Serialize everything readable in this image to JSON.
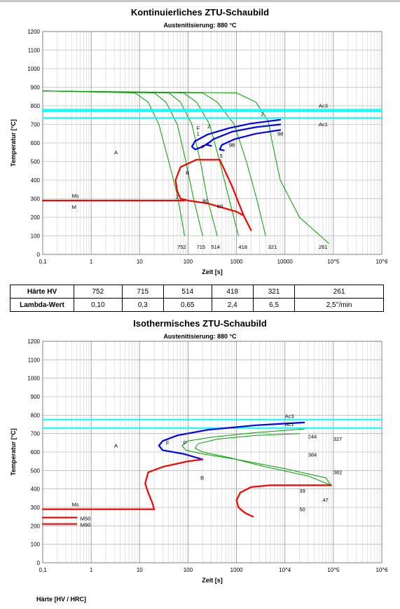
{
  "chart_data": [
    {
      "type": "line",
      "title": "Kontinuierliches ZTU-Schaubild",
      "subtitle": "Austenitisierung: 880 °C",
      "xlabel": "Zeit [s]",
      "ylabel": "Temperatur [°C]",
      "xscale": "log",
      "xlim": [
        0.1,
        1000000
      ],
      "ylim": [
        0,
        1200
      ],
      "grid": true,
      "x_ticks": [
        "0,1",
        "1",
        "10",
        "100",
        "1000",
        "10000",
        "10^5",
        "10^6"
      ],
      "y_ticks": [
        "0",
        "100",
        "200",
        "300",
        "400",
        "500",
        "600",
        "700",
        "800",
        "900",
        "1000",
        "1100",
        "1200"
      ],
      "series": [
        {
          "color": "#00a000",
          "points": [
            [
              0.1,
              880
            ],
            [
              8,
              870
            ],
            [
              15,
              820
            ],
            [
              25,
              700
            ],
            [
              40,
              500
            ],
            [
              60,
              320
            ],
            [
              85,
              100
            ]
          ]
        },
        {
          "color": "#00a000",
          "points": [
            [
              0.1,
              880
            ],
            [
              20,
              870
            ],
            [
              35,
              820
            ],
            [
              60,
              700
            ],
            [
              90,
              500
            ],
            [
              130,
              300
            ],
            [
              200,
              100
            ]
          ]
        },
        {
          "color": "#00a000",
          "points": [
            [
              0.1,
              880
            ],
            [
              40,
              870
            ],
            [
              70,
              820
            ],
            [
              120,
              700
            ],
            [
              180,
              500
            ],
            [
              250,
              300
            ],
            [
              400,
              100
            ]
          ]
        },
        {
          "color": "#00a000",
          "points": [
            [
              0.1,
              880
            ],
            [
              80,
              870
            ],
            [
              150,
              820
            ],
            [
              280,
              700
            ],
            [
              450,
              500
            ],
            [
              700,
              300
            ],
            [
              1100,
              100
            ]
          ]
        },
        {
          "color": "#00a000",
          "points": [
            [
              0.1,
              880
            ],
            [
              200,
              870
            ],
            [
              400,
              820
            ],
            [
              900,
              700
            ],
            [
              1600,
              500
            ],
            [
              2600,
              300
            ],
            [
              4000,
              100
            ]
          ]
        },
        {
          "color": "#00a000",
          "points": [
            [
              0.1,
              880
            ],
            [
              1000,
              870
            ],
            [
              2500,
              820
            ],
            [
              4500,
              720
            ],
            [
              5500,
              600
            ],
            [
              8000,
              400
            ],
            [
              20000,
              200
            ],
            [
              80000,
              60
            ]
          ]
        },
        {
          "color": "#00ffff",
          "points": [
            [
              0.1,
              780
            ],
            [
              1000000,
              780
            ]
          ]
        },
        {
          "color": "#00ffff",
          "points": [
            [
              0.1,
              770
            ],
            [
              1000000,
              770
            ]
          ]
        },
        {
          "color": "#00ffff",
          "points": [
            [
              0.1,
              735
            ],
            [
              1000000,
              735
            ]
          ]
        },
        {
          "color": "#0000ff",
          "points": [
            [
              8000,
              725
            ],
            [
              2000,
              705
            ],
            [
              700,
              680
            ],
            [
              250,
              645
            ],
            [
              140,
              610
            ],
            [
              120,
              580
            ],
            [
              140,
              565
            ],
            [
              200,
              580
            ],
            [
              300,
              610
            ]
          ]
        },
        {
          "color": "#0000ff",
          "points": [
            [
              8000,
              700
            ],
            [
              2500,
              685
            ],
            [
              800,
              660
            ],
            [
              330,
              620
            ],
            [
              240,
              590
            ],
            [
              300,
              585
            ]
          ]
        },
        {
          "color": "#0000ff",
          "points": [
            [
              8000,
              670
            ],
            [
              2500,
              650
            ],
            [
              900,
              620
            ],
            [
              500,
              590
            ],
            [
              450,
              565
            ],
            [
              550,
              560
            ]
          ]
        },
        {
          "color": "#ff0000",
          "points": [
            [
              450,
              510
            ],
            [
              150,
              510
            ],
            [
              70,
              470
            ],
            [
              55,
              400
            ],
            [
              60,
              340
            ],
            [
              70,
              300
            ],
            [
              100,
              290
            ],
            [
              250,
              275
            ],
            [
              1000,
              230
            ],
            [
              1400,
              210
            ]
          ]
        },
        {
          "color": "#ff0000",
          "points": [
            [
              450,
              510
            ],
            [
              800,
              370
            ],
            [
              1400,
              210
            ],
            [
              2000,
              130
            ]
          ]
        },
        {
          "color": "#ff0000",
          "points": [
            [
              0.1,
              290
            ],
            [
              85,
              290
            ]
          ]
        }
      ],
      "annotations": [
        {
          "text": "Ac3",
          "x": 50000,
          "y": 790
        },
        {
          "text": "Ac1",
          "x": 50000,
          "y": 690
        },
        {
          "text": "A",
          "x": 3,
          "y": 540
        },
        {
          "text": "F",
          "x": 150,
          "y": 670
        },
        {
          "text": "P",
          "x": 190,
          "y": 570
        },
        {
          "text": "B",
          "x": 90,
          "y": 430
        },
        {
          "text": "Ms",
          "x": 0.4,
          "y": 305
        },
        {
          "text": "M",
          "x": 0.4,
          "y": 245
        },
        {
          "text": "1",
          "x": 150,
          "y": 640
        },
        {
          "text": "2",
          "x": 250,
          "y": 680
        },
        {
          "text": "2",
          "x": 3200,
          "y": 745
        },
        {
          "text": "98",
          "x": 700,
          "y": 580
        },
        {
          "text": "98",
          "x": 7000,
          "y": 640
        },
        {
          "text": "5",
          "x": 450,
          "y": 520
        },
        {
          "text": "2",
          "x": 55,
          "y": 300
        },
        {
          "text": "80",
          "x": 200,
          "y": 278
        },
        {
          "text": "60",
          "x": 400,
          "y": 250
        },
        {
          "text": "752",
          "x": 60,
          "y": 30
        },
        {
          "text": "715",
          "x": 150,
          "y": 30
        },
        {
          "text": "514",
          "x": 300,
          "y": 30
        },
        {
          "text": "418",
          "x": 1100,
          "y": 30
        },
        {
          "text": "321",
          "x": 4500,
          "y": 30
        },
        {
          "text": "261",
          "x": 50000,
          "y": 30
        }
      ]
    },
    {
      "type": "line",
      "title": "Isothermisches ZTU-Schaubild",
      "subtitle": "Austenitisierung: 880 °C",
      "xlabel": "Zeit [s]",
      "ylabel": "Temperatur [°C]",
      "xscale": "log",
      "xlim": [
        0.1,
        1000000
      ],
      "ylim": [
        0,
        1200
      ],
      "grid": true,
      "x_ticks": [
        "0,1",
        "1",
        "10",
        "100",
        "1000",
        "10^4",
        "10^5",
        "10^6"
      ],
      "y_ticks": [
        "0",
        "100",
        "200",
        "300",
        "400",
        "500",
        "600",
        "700",
        "800",
        "900",
        "1000",
        "1100",
        "1200"
      ],
      "series": [
        {
          "color": "#00ffff",
          "points": [
            [
              0.1,
              775
            ],
            [
              1000000,
              775
            ]
          ]
        },
        {
          "color": "#00ffff",
          "points": [
            [
              0.1,
              730
            ],
            [
              1000000,
              730
            ]
          ]
        },
        {
          "color": "#0000ff",
          "points": [
            [
              25000,
              760
            ],
            [
              2500,
              745
            ],
            [
              250,
              720
            ],
            [
              60,
              690
            ],
            [
              30,
              660
            ],
            [
              25,
              635
            ],
            [
              30,
              610
            ],
            [
              80,
              590
            ],
            [
              200,
              560
            ]
          ]
        },
        {
          "color": "#00a000",
          "points": [
            [
              25000,
              725
            ],
            [
              2500,
              705
            ],
            [
              300,
              680
            ],
            [
              100,
              660
            ],
            [
              75,
              635
            ],
            [
              90,
              610
            ],
            [
              200,
              590
            ],
            [
              1000,
              560
            ],
            [
              10000,
              510
            ],
            [
              70000,
              460
            ],
            [
              90000,
              420
            ]
          ]
        },
        {
          "color": "#00a000",
          "points": [
            [
              20000,
              700
            ],
            [
              2500,
              690
            ],
            [
              400,
              670
            ],
            [
              160,
              645
            ],
            [
              140,
              620
            ],
            [
              200,
              600
            ],
            [
              700,
              570
            ],
            [
              4000,
              520
            ],
            [
              30000,
              470
            ],
            [
              90000,
              420
            ]
          ]
        },
        {
          "color": "#ff0000",
          "points": [
            [
              200,
              560
            ],
            [
              100,
              550
            ],
            [
              30,
              520
            ],
            [
              15,
              490
            ],
            [
              13,
              430
            ],
            [
              15,
              380
            ],
            [
              18,
              330
            ],
            [
              20,
              290
            ]
          ]
        },
        {
          "color": "#ff0000",
          "points": [
            [
              0.1,
              290
            ],
            [
              20,
              290
            ]
          ]
        },
        {
          "color": "#ff0000",
          "points": [
            [
              0.1,
              245
            ],
            [
              0.5,
              245
            ]
          ]
        },
        {
          "color": "#ff0000",
          "points": [
            [
              0.1,
              210
            ],
            [
              0.5,
              210
            ]
          ]
        },
        {
          "color": "#ff0000",
          "points": [
            [
              90000,
              420
            ],
            [
              5000,
              420
            ],
            [
              2000,
              410
            ],
            [
              1200,
              380
            ],
            [
              1000,
              340
            ],
            [
              1100,
              300
            ],
            [
              1500,
              270
            ],
            [
              2200,
              250
            ]
          ]
        }
      ],
      "annotations": [
        {
          "text": "Ac3",
          "x": 10000,
          "y": 785
        },
        {
          "text": "Ac1",
          "x": 10000,
          "y": 740
        },
        {
          "text": "A",
          "x": 3,
          "y": 625
        },
        {
          "text": "F",
          "x": 35,
          "y": 640
        },
        {
          "text": "P",
          "x": 80,
          "y": 640
        },
        {
          "text": "B",
          "x": 180,
          "y": 450
        },
        {
          "text": "Ms",
          "x": 0.4,
          "y": 305
        },
        {
          "text": "M50",
          "x": 0.6,
          "y": 230
        },
        {
          "text": "M90",
          "x": 0.6,
          "y": 195
        },
        {
          "text": "244",
          "x": 30000,
          "y": 675
        },
        {
          "text": "327",
          "x": 100000,
          "y": 660
        },
        {
          "text": "384",
          "x": 30000,
          "y": 575
        },
        {
          "text": "382",
          "x": 100000,
          "y": 480
        },
        {
          "text": "39",
          "x": 20000,
          "y": 380
        },
        {
          "text": "47",
          "x": 60000,
          "y": 330
        },
        {
          "text": "50",
          "x": 20000,
          "y": 280
        }
      ]
    }
  ],
  "table": {
    "row1": {
      "label": "Härte HV",
      "cells": [
        "752",
        "715",
        "514",
        "418",
        "321",
        "261"
      ]
    },
    "row2": {
      "label": "Lambda-Wert",
      "cells": [
        "0,10",
        "0,3",
        "0,65",
        "2,4",
        "6,5",
        "2,5°/min"
      ]
    }
  },
  "footer": "Härte [HV / HRC]"
}
